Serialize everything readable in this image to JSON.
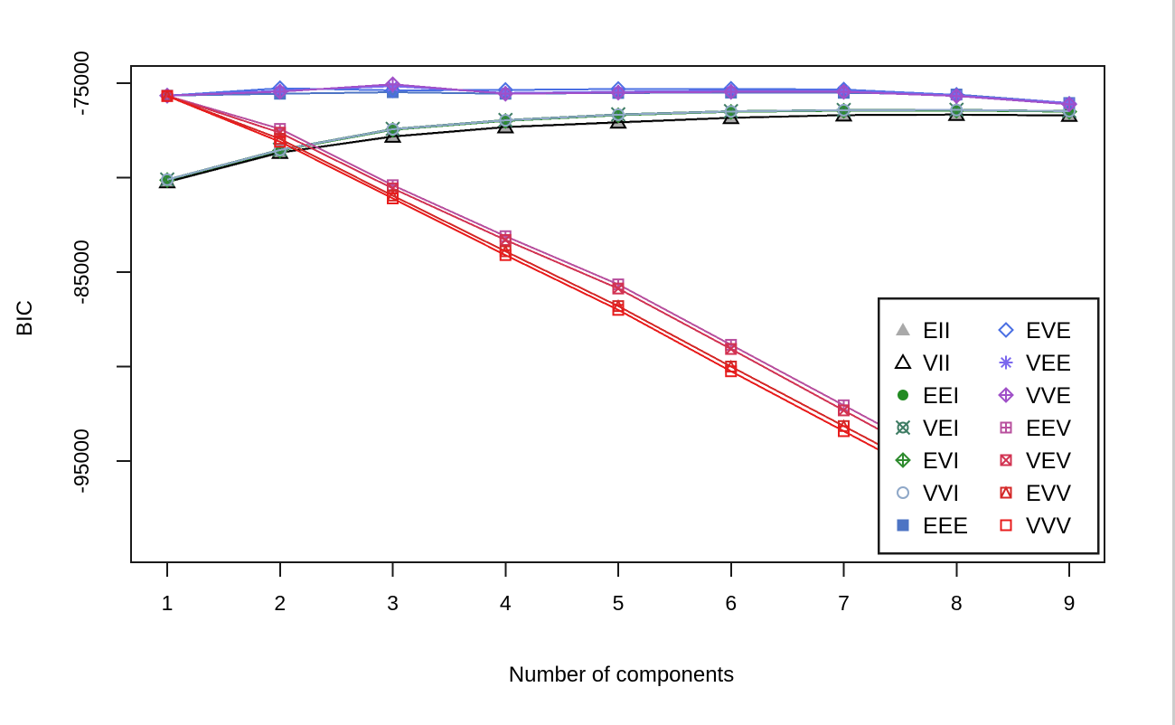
{
  "window": {
    "background": "#ffffff",
    "edge_color": "#cccccc",
    "frame_color": "#1a1a1a",
    "text_color": "#000000"
  },
  "chart_data": {
    "type": "line",
    "title": "",
    "xlabel": "Number of components",
    "ylabel": "BIC",
    "grid": false,
    "xlim": [
      0.68,
      9.31
    ],
    "ylim": [
      -100400,
      -74100
    ],
    "x": [
      1,
      2,
      3,
      4,
      5,
      6,
      7,
      8,
      9
    ],
    "x_ticks": [
      {
        "value": 1,
        "label": "1"
      },
      {
        "value": 2,
        "label": "2"
      },
      {
        "value": 3,
        "label": "3"
      },
      {
        "value": 4,
        "label": "4"
      },
      {
        "value": 5,
        "label": "5"
      },
      {
        "value": 6,
        "label": "6"
      },
      {
        "value": 7,
        "label": "7"
      },
      {
        "value": 8,
        "label": "8"
      },
      {
        "value": 9,
        "label": "9"
      }
    ],
    "y_ticks": [
      {
        "value": -75000,
        "label": "-75000"
      },
      {
        "value": -80000,
        "label": ""
      },
      {
        "value": -85000,
        "label": "-85000"
      },
      {
        "value": -90000,
        "label": ""
      },
      {
        "value": -95000,
        "label": "-95000"
      }
    ],
    "series": [
      {
        "name": "EII",
        "color": "#a9a9a9",
        "symbol": "filled-triangle",
        "values": [
          -80250,
          -78700,
          -77850,
          -77350,
          -77100,
          -76850,
          -76700,
          -76680,
          -76730
        ]
      },
      {
        "name": "VII",
        "color": "#000000",
        "symbol": "open-triangle",
        "values": [
          -80230,
          -78670,
          -77820,
          -77320,
          -77070,
          -76830,
          -76690,
          -76660,
          -76710
        ]
      },
      {
        "name": "EEI",
        "color": "#228b22",
        "symbol": "filled-circle",
        "values": [
          -80120,
          -78550,
          -77450,
          -76980,
          -76680,
          -76500,
          -76440,
          -76430,
          -76490
        ]
      },
      {
        "name": "VEI",
        "color": "#3e7c63",
        "symbol": "circle-x",
        "values": [
          -80100,
          -78520,
          -77420,
          -76950,
          -76650,
          -76480,
          -76420,
          -76410,
          -76470
        ]
      },
      {
        "name": "EVI",
        "color": "#2e8b2e",
        "symbol": "diamond-plus",
        "values": [
          -80130,
          -78570,
          -77470,
          -77000,
          -76700,
          -76520,
          -76460,
          -76450,
          -76510
        ]
      },
      {
        "name": "VVI",
        "color": "#8fa8c8",
        "symbol": "open-circle",
        "values": [
          -80110,
          -78540,
          -77440,
          -76970,
          -76670,
          -76500,
          -76430,
          -76420,
          -76480
        ]
      },
      {
        "name": "EEE",
        "color": "#4d74c4",
        "symbol": "filled-square",
        "values": [
          -75660,
          -75560,
          -75480,
          -75560,
          -75520,
          -75500,
          -75510,
          -75600,
          -76050
        ]
      },
      {
        "name": "EVE",
        "color": "#4a6fe3",
        "symbol": "open-diamond",
        "values": [
          -75660,
          -75270,
          -75380,
          -75360,
          -75310,
          -75300,
          -75340,
          -75620,
          -76100
        ]
      },
      {
        "name": "VEE",
        "color": "#7b68ee",
        "symbol": "asterisk",
        "values": [
          -75660,
          -75400,
          -75160,
          -75520,
          -75450,
          -75400,
          -75410,
          -75650,
          -76050
        ]
      },
      {
        "name": "VVE",
        "color": "#a050c8",
        "symbol": "diamond-plus",
        "values": [
          -75660,
          -75450,
          -75060,
          -75560,
          -75500,
          -75460,
          -75460,
          -75680,
          -76120
        ]
      },
      {
        "name": "EEV",
        "color": "#b8509e",
        "symbol": "square-plus",
        "truncated": true,
        "values": [
          -75670,
          -77420,
          -80400,
          -83100,
          -85650,
          -88850,
          -92050,
          null,
          null
        ]
      },
      {
        "name": "VEV",
        "color": "#d23352",
        "symbol": "square-x",
        "truncated": true,
        "values": [
          -75670,
          -77620,
          -80570,
          -83300,
          -85870,
          -89070,
          -92320,
          null,
          null
        ]
      },
      {
        "name": "EVV",
        "color": "#d42828",
        "symbol": "square-triangle",
        "truncated": true,
        "values": [
          -75680,
          -77950,
          -80950,
          -83900,
          -86800,
          -90000,
          -93150,
          null,
          null
        ]
      },
      {
        "name": "VVV",
        "color": "#e81c1c",
        "symbol": "open-square",
        "truncated": true,
        "values": [
          -75680,
          -78100,
          -81100,
          -84100,
          -87000,
          -90250,
          -93420,
          null,
          null
        ]
      }
    ],
    "legend": {
      "position": "bottom-right",
      "columns": [
        [
          "EII",
          "VII",
          "EEI",
          "VEI",
          "EVI",
          "VVI",
          "EEE"
        ],
        [
          "EVE",
          "VEE",
          "VVE",
          "EEV",
          "VEV",
          "EVV",
          "VVV"
        ]
      ]
    }
  }
}
